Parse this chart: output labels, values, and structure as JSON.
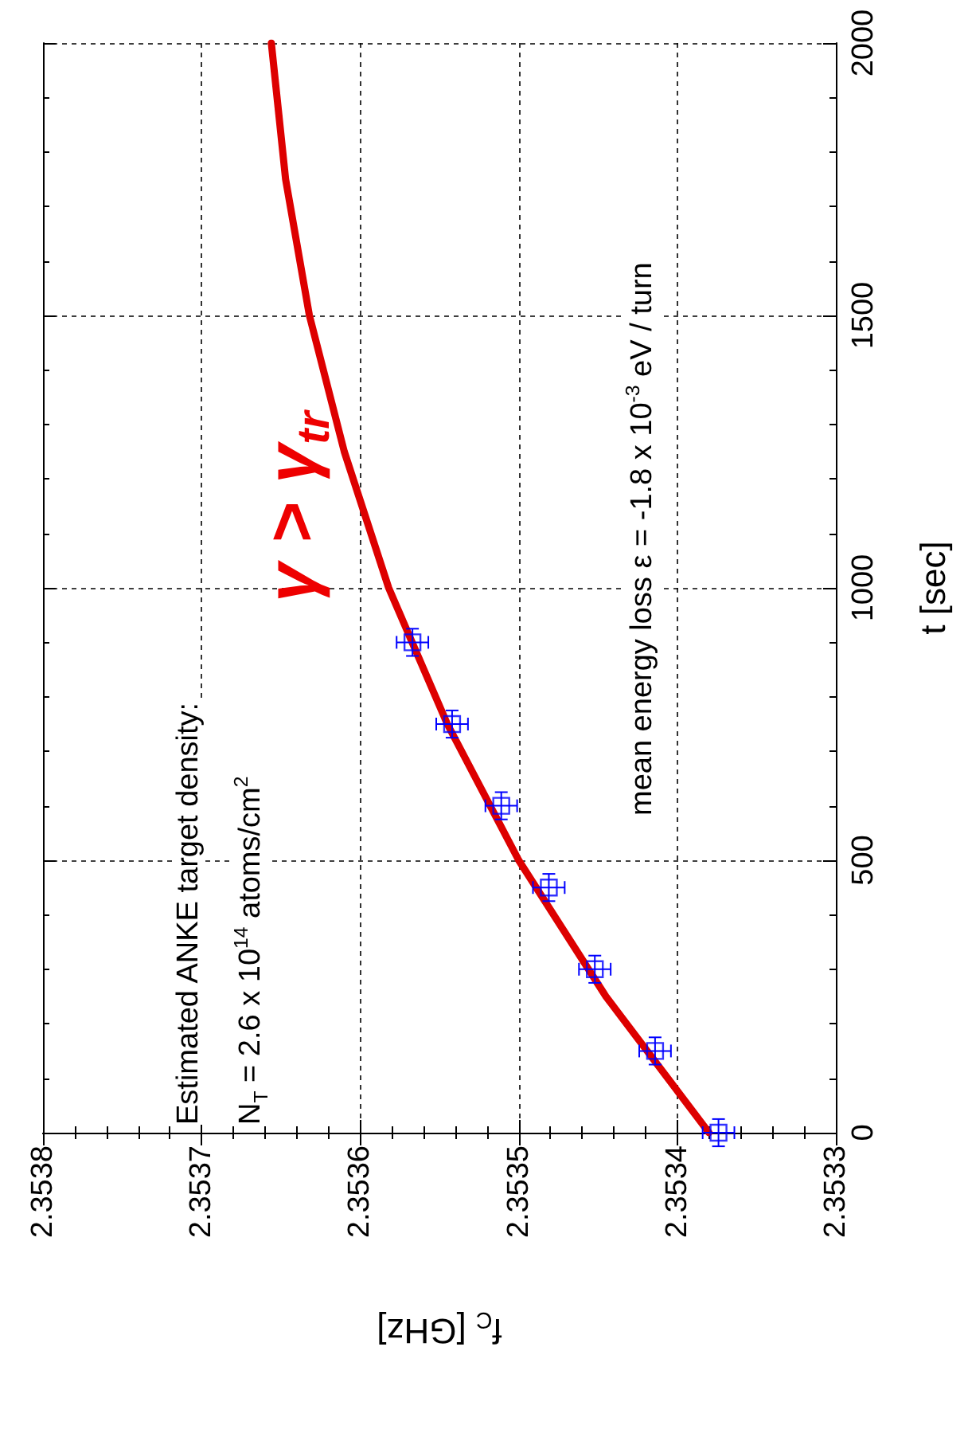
{
  "chart_data": {
    "type": "scatter",
    "xlabel": "f$_{C}$ [GHz]",
    "ylabel": "t [sec]",
    "xlim": [
      2.3538,
      2.3533
    ],
    "xticks": [
      2.3538,
      2.3537,
      2.3536,
      2.3535,
      2.3534,
      2.3533
    ],
    "ylim": [
      0,
      2000
    ],
    "yticks": [
      0,
      500,
      1000,
      1500,
      2000
    ],
    "grid": true,
    "annotations": [
      "Estimated ANKE target density:",
      "N$_{T}$ = 2.6 x 10$^{14}$ atoms/cm$^{2}$",
      "mean energy loss ε = -1.8 x 10$^{-3}$ eV / turn",
      "γ > γ$_{tr}$"
    ],
    "series": [
      {
        "color": "#0000ff",
        "marker": "square",
        "x": [
          2.353374,
          2.353414,
          2.353452,
          2.353481,
          2.353511,
          2.353542,
          2.353567
        ],
        "values": [
          0,
          150,
          300,
          450,
          600,
          750,
          900
        ],
        "errors": [
          25,
          25,
          25,
          25,
          25,
          25,
          25
        ],
        "xerrors": [
          1e-05,
          1e-05,
          1e-05,
          1e-05,
          1e-05,
          1e-05,
          1e-05
        ]
      },
      {
        "type": "line",
        "color": "#dd0000",
        "marker": "none",
        "line_style": "solid",
        "x": [
          2.35338,
          2.353445,
          2.3535,
          2.353545,
          2.353582,
          2.35361,
          2.353632,
          2.353647,
          2.353656
        ],
        "values": [
          0,
          250,
          500,
          750,
          1000,
          1250,
          1500,
          1750,
          2000
        ]
      }
    ]
  }
}
